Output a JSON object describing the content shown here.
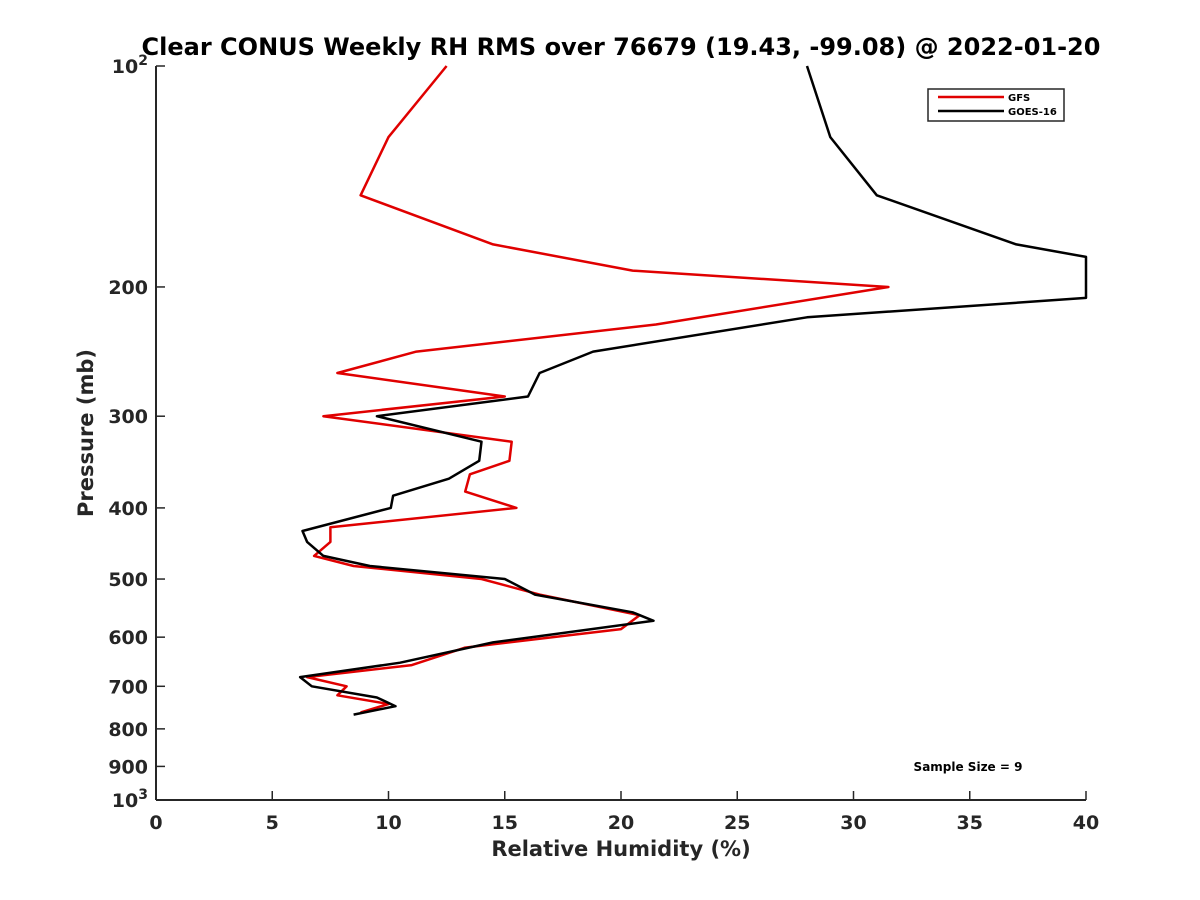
{
  "chart_data": {
    "type": "line",
    "title": "Clear CONUS Weekly RH RMS over 76679 (19.43, -99.08) @ 2022-01-20",
    "xlabel": "Relative Humidity (%)",
    "ylabel": "Pressure (mb)",
    "xlim": [
      0,
      40
    ],
    "ylim": [
      100,
      1000
    ],
    "y_scale": "log",
    "y_reversed": true,
    "grid": false,
    "legend_position": "top-right",
    "x_ticks": [
      "0",
      "5",
      "10",
      "15",
      "20",
      "25",
      "30",
      "35",
      "40"
    ],
    "y_ticks": [
      {
        "value": 100,
        "base": "10",
        "exp": "2"
      },
      {
        "value": 200,
        "label": "200"
      },
      {
        "value": 300,
        "label": "300"
      },
      {
        "value": 400,
        "label": "400"
      },
      {
        "value": 500,
        "label": "500"
      },
      {
        "value": 600,
        "label": "600"
      },
      {
        "value": 700,
        "label": "700"
      },
      {
        "value": 800,
        "label": "800"
      },
      {
        "value": 900,
        "label": "900"
      },
      {
        "value": 1000,
        "base": "10",
        "exp": "3"
      }
    ],
    "series": [
      {
        "name": "GFS",
        "color": "#e00000",
        "points": [
          [
            12.5,
            100
          ],
          [
            10.0,
            125
          ],
          [
            8.8,
            150
          ],
          [
            14.5,
            175
          ],
          [
            20.5,
            190
          ],
          [
            31.5,
            200
          ],
          [
            21.5,
            225
          ],
          [
            11.2,
            245
          ],
          [
            7.8,
            262
          ],
          [
            15.0,
            282
          ],
          [
            7.2,
            300
          ],
          [
            15.3,
            325
          ],
          [
            15.2,
            345
          ],
          [
            13.5,
            360
          ],
          [
            13.3,
            380
          ],
          [
            15.5,
            400
          ],
          [
            7.5,
            425
          ],
          [
            7.5,
            445
          ],
          [
            6.8,
            465
          ],
          [
            8.5,
            480
          ],
          [
            14.0,
            500
          ],
          [
            16.5,
            525
          ],
          [
            20.8,
            560
          ],
          [
            20.0,
            585
          ],
          [
            13.3,
            620
          ],
          [
            11.0,
            655
          ],
          [
            6.5,
            680
          ],
          [
            8.2,
            700
          ],
          [
            7.8,
            720
          ],
          [
            10.0,
            740
          ],
          [
            8.8,
            760
          ]
        ]
      },
      {
        "name": "GOES-16",
        "color": "#000000",
        "points": [
          [
            28.0,
            100
          ],
          [
            29.0,
            125
          ],
          [
            31.0,
            150
          ],
          [
            37.0,
            175
          ],
          [
            40.0,
            182
          ],
          [
            40.0,
            207
          ],
          [
            28.0,
            220
          ],
          [
            18.8,
            245
          ],
          [
            16.5,
            262
          ],
          [
            16.0,
            282
          ],
          [
            9.5,
            300
          ],
          [
            14.0,
            325
          ],
          [
            13.9,
            345
          ],
          [
            12.6,
            365
          ],
          [
            10.2,
            385
          ],
          [
            10.1,
            400
          ],
          [
            6.3,
            430
          ],
          [
            6.5,
            445
          ],
          [
            7.2,
            465
          ],
          [
            9.2,
            480
          ],
          [
            15.0,
            500
          ],
          [
            16.3,
            525
          ],
          [
            20.5,
            555
          ],
          [
            21.4,
            570
          ],
          [
            14.5,
            610
          ],
          [
            10.5,
            650
          ],
          [
            6.2,
            680
          ],
          [
            6.7,
            700
          ],
          [
            9.5,
            725
          ],
          [
            10.3,
            745
          ],
          [
            8.5,
            765
          ]
        ]
      }
    ],
    "annotation": "Sample Size = 9"
  }
}
